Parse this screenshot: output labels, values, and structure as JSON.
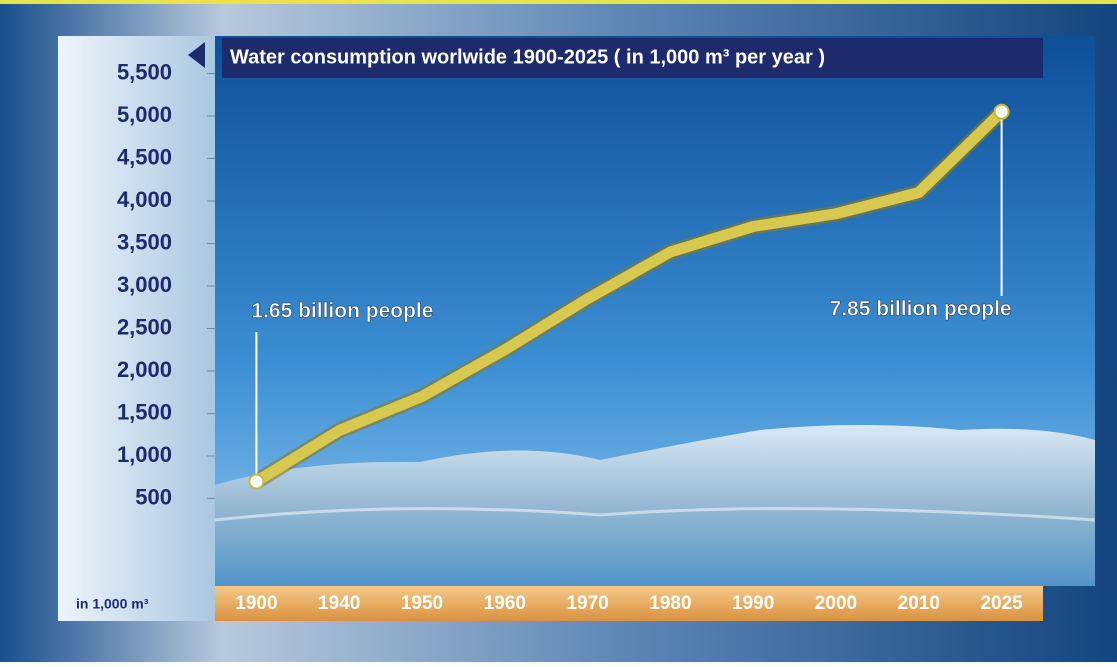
{
  "chart_data": {
    "type": "line",
    "title": "Water consumption worlwide 1900-2025 ( in 1,000 m³ per year )",
    "y_axis_label": "in 1,000 m³",
    "categories": [
      "1900",
      "1940",
      "1950",
      "1960",
      "1970",
      "1980",
      "1990",
      "2000",
      "2010",
      "2025"
    ],
    "series": [
      {
        "name": "Water consumption",
        "color": "#d8c84e",
        "values": [
          700,
          1300,
          1700,
          2250,
          2850,
          3400,
          3700,
          3850,
          4100,
          5050
        ]
      }
    ],
    "annotations": [
      "1.65 billion people",
      "7.85 billion people"
    ],
    "ylim": [
      0,
      6000
    ],
    "yticks": [
      {
        "value": 500,
        "label": "500"
      },
      {
        "value": 1000,
        "label": "1,000"
      },
      {
        "value": 1500,
        "label": "1,500"
      },
      {
        "value": 2000,
        "label": "2,000"
      },
      {
        "value": 2500,
        "label": "2,500"
      },
      {
        "value": 3000,
        "label": "3,000"
      },
      {
        "value": 3500,
        "label": "3,500"
      },
      {
        "value": 4000,
        "label": "4,000"
      },
      {
        "value": 4500,
        "label": "4,500"
      },
      {
        "value": 5000,
        "label": "5,000"
      },
      {
        "value": 5500,
        "label": "5,500"
      }
    ],
    "grid": false
  }
}
